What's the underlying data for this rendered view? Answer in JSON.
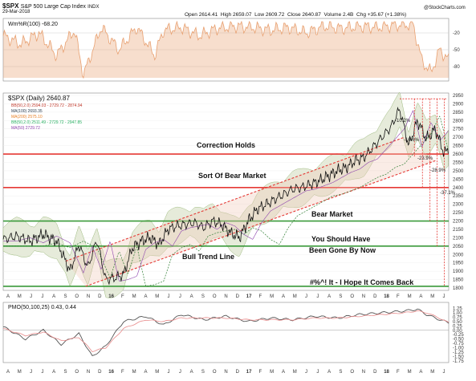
{
  "header": {
    "symbol": "$SPX",
    "name": "S&P 500 Large Cap Index",
    "exchange": "INDX",
    "date": "29-Mar-2018",
    "open": "Open 2614.41",
    "high": "High 2659.07",
    "low": "Low 2609.72",
    "close": "Close 2640.87",
    "volume": "Volume 2.4B",
    "chg": "Chg +35.67 (+1.38%)",
    "source": "@StockCharts.com"
  },
  "colors": {
    "price": "#111111",
    "willr": "#e8a070",
    "band_fill": "#e3e9d6",
    "band_line": "#9bb97c",
    "ma200": "#2e7d32",
    "ma50": "#8e44ad",
    "support_red": "#e53935",
    "support_green": "#3a9a3a",
    "trend": "#e53935",
    "pmo": "#555555",
    "signal": "#e88a8a"
  },
  "chart_data": [
    {
      "type": "line",
      "title": "Wm%R(100) -68.20",
      "ylim": [
        -100,
        0
      ],
      "ticks": [
        "-20",
        "-50",
        "-80"
      ],
      "series": [
        {
          "name": "Wm%R(100)",
          "x": [
            0,
            4,
            8,
            12,
            16,
            18,
            22,
            26,
            30,
            34,
            36,
            40,
            44,
            48,
            52,
            56,
            60,
            64,
            68,
            72,
            76,
            80,
            84,
            88,
            92,
            94,
            96,
            98,
            100
          ],
          "values": [
            -25,
            -40,
            -20,
            -60,
            -15,
            -95,
            -10,
            -50,
            -10,
            -60,
            -15,
            -10,
            -25,
            -12,
            -8,
            -10,
            -15,
            -10,
            -20,
            -8,
            -12,
            -8,
            -10,
            -6,
            -5,
            -70,
            -90,
            -50,
            -68.2
          ]
        }
      ]
    },
    {
      "type": "line",
      "title": "$SPX (Daily) 2640.87",
      "legend": [
        "BB(50,2.0) 2594.03 - 2729.72 - 2874.94",
        "MA(100) 2693.35",
        "MA(200) 2575.10",
        "BB(50,2.0) 2511.49 - 2729.72 - 2947.85",
        "MA(50) 2729.72"
      ],
      "ylim": [
        1800,
        2950
      ],
      "y_ticks": [
        "2950",
        "2900",
        "2850",
        "2800",
        "2750",
        "2700",
        "2650",
        "2600",
        "2550",
        "2500",
        "2450",
        "2400",
        "2350",
        "2300",
        "2250",
        "2200",
        "2150",
        "2100",
        "2050",
        "2000",
        "1950",
        "1900",
        "1850",
        "1800"
      ],
      "x_ticks": [
        "A",
        "M",
        "J",
        "J",
        "A",
        "S",
        "O",
        "N",
        "D",
        "16",
        "F",
        "M",
        "A",
        "M",
        "J",
        "J",
        "A",
        "S",
        "O",
        "N",
        "D",
        "17",
        "F",
        "M",
        "A",
        "M",
        "J",
        "J",
        "A",
        "S",
        "O",
        "N",
        "D",
        "18",
        "F",
        "M",
        "A",
        "M",
        "J"
      ],
      "horizontal_levels": [
        {
          "value": 2600,
          "color": "red"
        },
        {
          "value": 2400,
          "color": "red"
        },
        {
          "value": 2200,
          "color": "green"
        },
        {
          "value": 2050,
          "color": "green"
        },
        {
          "value": 1810,
          "color": "green"
        }
      ],
      "drawdown_labels": [
        "-10.2%",
        "-16.6%",
        "-23.9%",
        "-28.9%",
        "-37.1%"
      ],
      "annotations": [
        "Correction Holds",
        "Sort Of Bear Market",
        "Bear Market",
        "You Should Have",
        "Been Gone By Now",
        "Bull Trend Line",
        "#%^! It - I Hope It Comes Back"
      ],
      "series": [
        {
          "name": "$SPX",
          "x": [
            0,
            3,
            6,
            9,
            12,
            15,
            17,
            19,
            21,
            23,
            25,
            27,
            29,
            31,
            33,
            35,
            37,
            39,
            41,
            43,
            45,
            47,
            49,
            51,
            53,
            55,
            57,
            59,
            61,
            63,
            65,
            67,
            69,
            71,
            73,
            75,
            77,
            79,
            81,
            83,
            85,
            87,
            89,
            91,
            93,
            95,
            97,
            99,
            100
          ],
          "values": [
            2090,
            2110,
            2080,
            2120,
            2080,
            1900,
            2060,
            1920,
            2090,
            1850,
            1860,
            1880,
            2040,
            2080,
            2100,
            2060,
            2150,
            2170,
            2180,
            2190,
            2160,
            2200,
            2180,
            2130,
            2100,
            2200,
            2270,
            2300,
            2330,
            2360,
            2390,
            2400,
            2420,
            2440,
            2470,
            2500,
            2520,
            2560,
            2580,
            2640,
            2700,
            2760,
            2870,
            2650,
            2800,
            2690,
            2750,
            2600,
            2640
          ]
        }
      ]
    },
    {
      "type": "line",
      "title": "PMO(50,100,25) 0.43, 0.44",
      "ylim": [
        -1.75,
        1.5
      ],
      "ticks": [
        "1.25",
        "1.00",
        "0.75",
        "0.50",
        "0.25",
        "0.00",
        "-0.25",
        "-0.50",
        "-0.75",
        "-1.00",
        "-1.25",
        "-1.50",
        "-1.75"
      ],
      "series": [
        {
          "name": "PMO",
          "x": [
            0,
            5,
            9,
            13,
            17,
            20,
            23,
            27,
            32,
            36,
            40,
            45,
            50,
            55,
            60,
            65,
            70,
            75,
            80,
            85,
            90,
            93,
            95,
            97,
            100
          ],
          "values": [
            0.2,
            -0.5,
            0.0,
            -0.8,
            -0.2,
            -1.5,
            -0.9,
            0.5,
            0.8,
            0.3,
            0.9,
            0.6,
            0.8,
            0.5,
            0.7,
            0.6,
            0.8,
            0.7,
            0.9,
            1.0,
            1.1,
            1.2,
            0.9,
            0.7,
            0.43
          ]
        },
        {
          "name": "Signal",
          "x": [
            0,
            5,
            9,
            13,
            17,
            20,
            23,
            27,
            32,
            36,
            40,
            45,
            50,
            55,
            60,
            65,
            70,
            75,
            80,
            85,
            90,
            93,
            95,
            97,
            100
          ],
          "values": [
            0.1,
            -0.3,
            -0.1,
            -0.6,
            -0.4,
            -1.2,
            -1.0,
            0.1,
            0.6,
            0.5,
            0.7,
            0.7,
            0.7,
            0.6,
            0.6,
            0.6,
            0.7,
            0.7,
            0.8,
            0.9,
            1.0,
            1.1,
            1.0,
            0.8,
            0.44
          ]
        }
      ]
    }
  ]
}
